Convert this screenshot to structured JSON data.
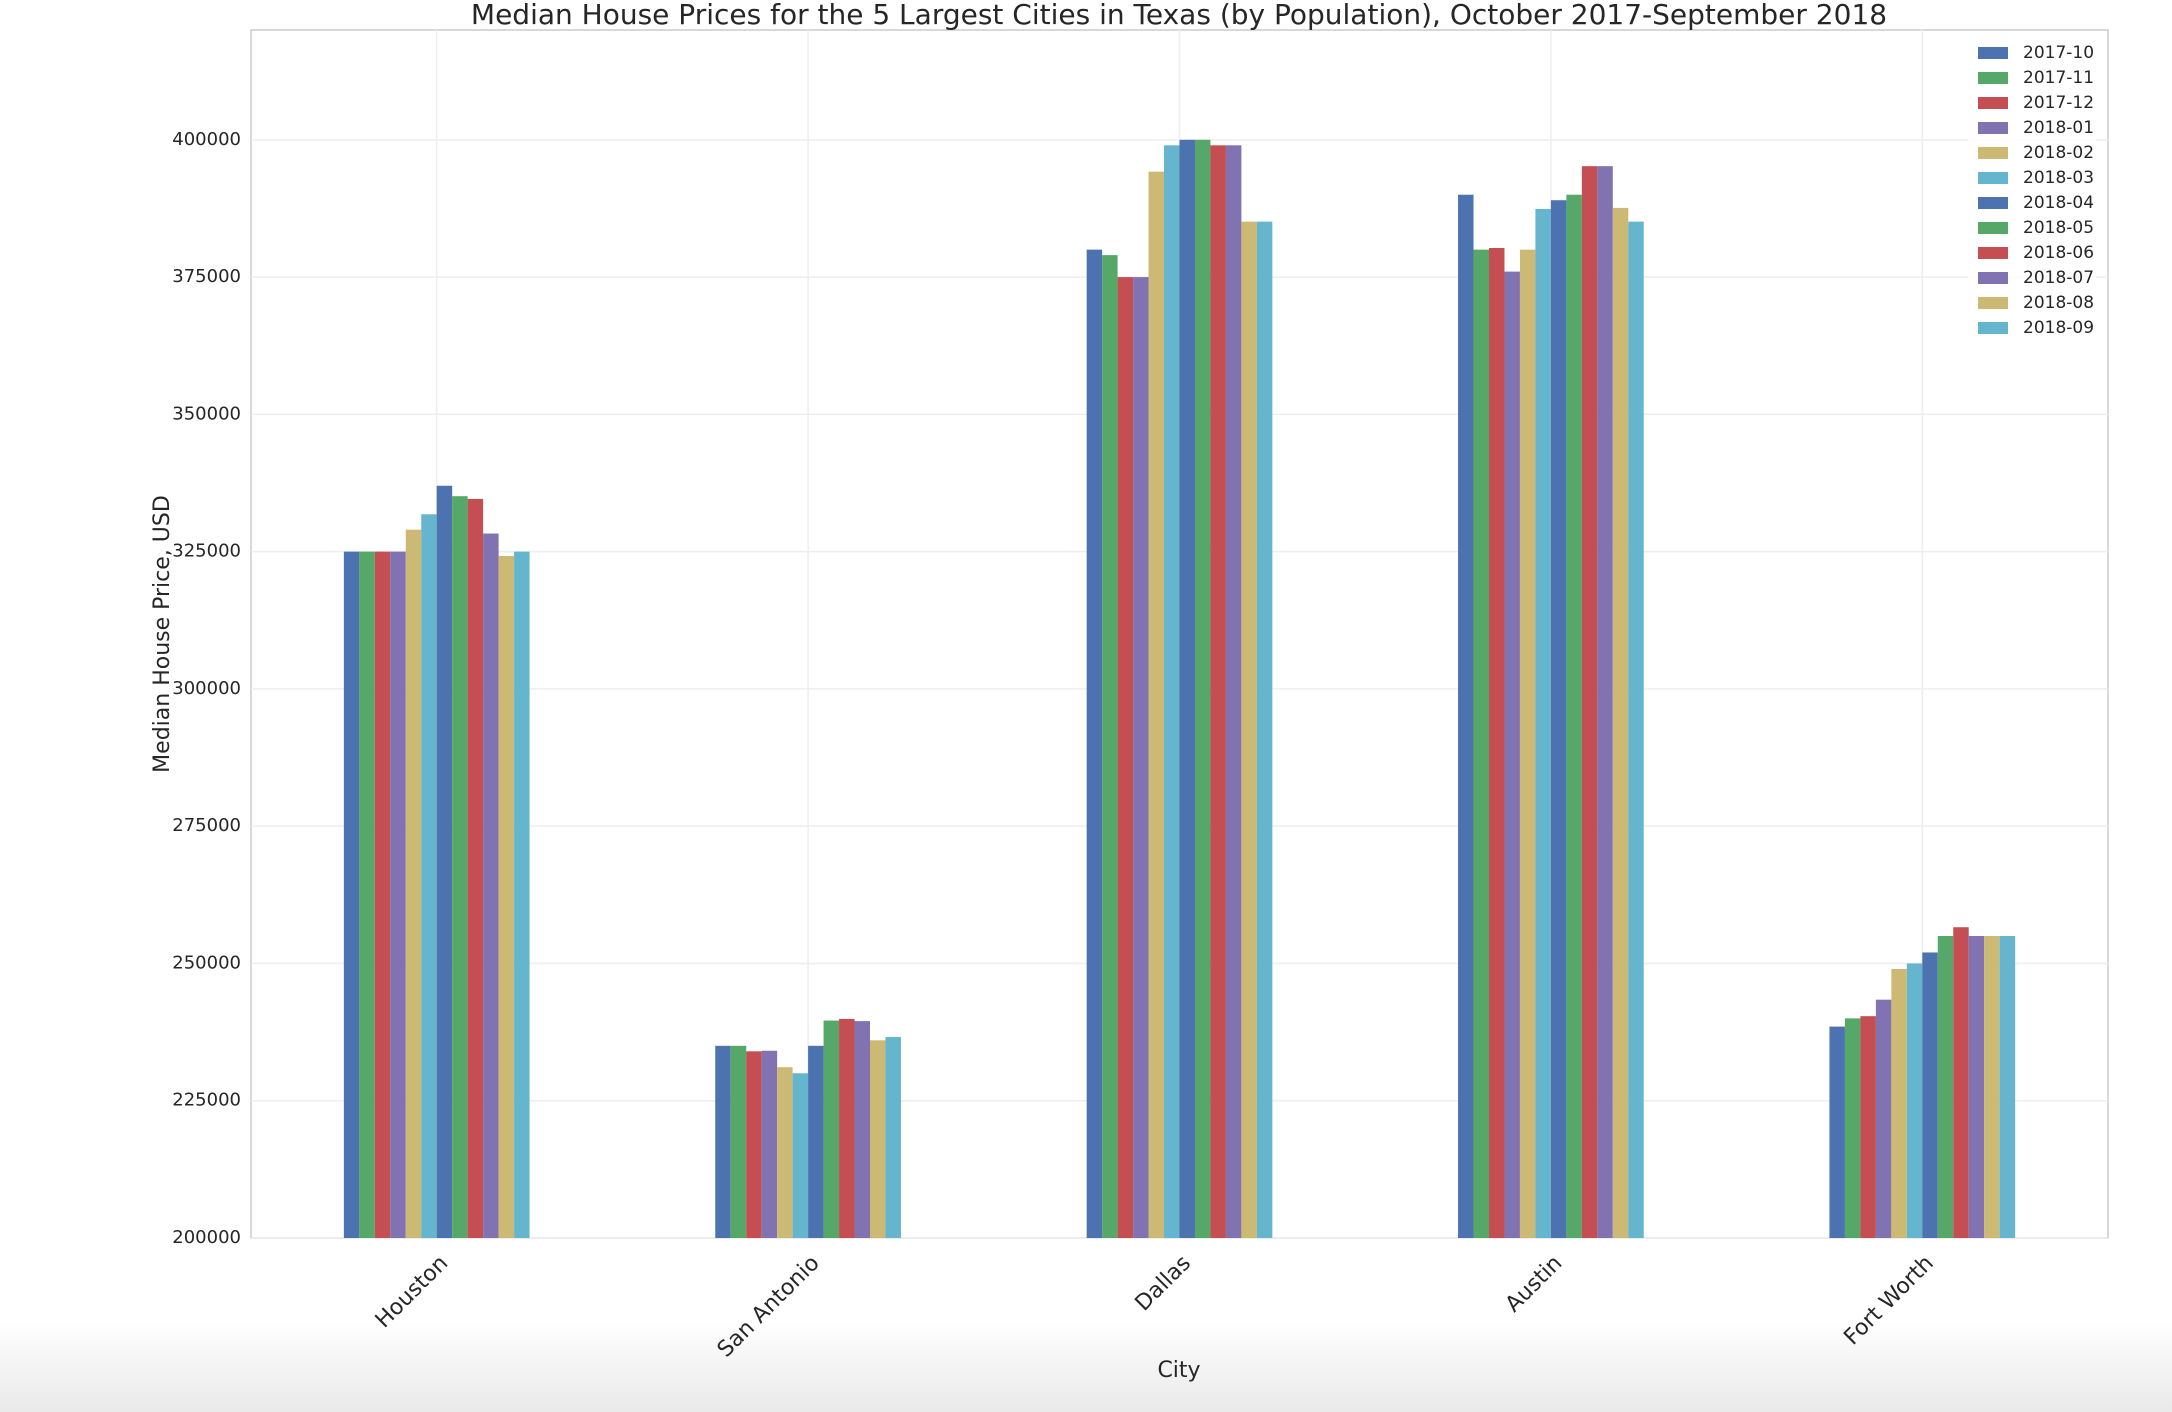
{
  "chart_data": {
    "type": "bar",
    "title": "Median House Prices for the 5 Largest Cities in Texas (by Population), October 2017-September 2018",
    "x_label": "City",
    "y_label": "Median House Price, USD",
    "categories": [
      "Houston",
      "San Antonio",
      "Dallas",
      "Austin",
      "Fort Worth"
    ],
    "series": [
      {
        "name": "2017-10",
        "color": "#4c72b0",
        "values": [
          325000,
          235000,
          380000,
          390000,
          238500
        ]
      },
      {
        "name": "2017-11",
        "color": "#55a868",
        "values": [
          325000,
          235000,
          379000,
          380000,
          240000
        ]
      },
      {
        "name": "2017-12",
        "color": "#c44e52",
        "values": [
          325000,
          234000,
          375000,
          380300,
          240400
        ]
      },
      {
        "name": "2018-01",
        "color": "#8172b2",
        "values": [
          325000,
          234100,
          375000,
          376000,
          243400
        ]
      },
      {
        "name": "2018-02",
        "color": "#ccb974",
        "values": [
          329000,
          231100,
          394200,
          380000,
          249000
        ]
      },
      {
        "name": "2018-03",
        "color": "#64b5cd",
        "values": [
          331800,
          230000,
          399000,
          387400,
          250000
        ]
      },
      {
        "name": "2018-04",
        "color": "#4c72b0",
        "values": [
          337000,
          235000,
          400000,
          389000,
          252000
        ]
      },
      {
        "name": "2018-05",
        "color": "#55a868",
        "values": [
          335100,
          239600,
          400000,
          390000,
          255000
        ]
      },
      {
        "name": "2018-06",
        "color": "#c44e52",
        "values": [
          334600,
          239900,
          399000,
          395200,
          256600
        ]
      },
      {
        "name": "2018-07",
        "color": "#8172b2",
        "values": [
          328300,
          239500,
          399000,
          395200,
          255000
        ]
      },
      {
        "name": "2018-08",
        "color": "#ccb974",
        "values": [
          324200,
          236000,
          385100,
          387600,
          255000
        ]
      },
      {
        "name": "2018-09",
        "color": "#64b5cd",
        "values": [
          325000,
          236600,
          385100,
          385100,
          255000
        ]
      }
    ],
    "ylim": [
      200000,
      420000
    ],
    "yticks": [
      200000,
      225000,
      250000,
      275000,
      300000,
      325000,
      350000,
      375000,
      400000
    ],
    "grid": true,
    "legend": "upper right"
  }
}
